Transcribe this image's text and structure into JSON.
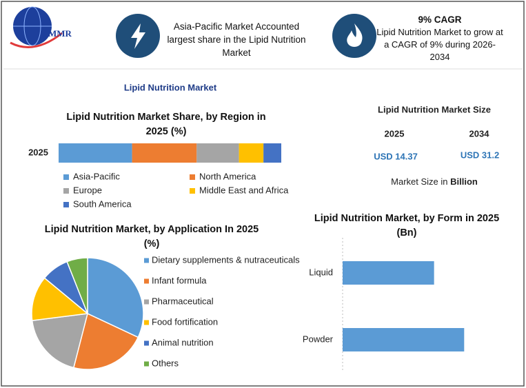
{
  "header": {
    "logo": "MMR",
    "info1": "Asia-Pacific Market Accounted largest share in the Lipid Nutrition Market",
    "info2_title": "9% CAGR",
    "info2_text": "Lipid Nutrition Market to grow at a CAGR of 9% during 2026-2034"
  },
  "title": "Lipid Nutrition Market",
  "market_size": {
    "title": "Lipid Nutrition Market Size",
    "years": [
      "2025",
      "2034"
    ],
    "values": [
      "USD 14.37",
      "USD 31.2"
    ],
    "note_prefix": "Market Size in",
    "note_unit": "Billion"
  },
  "chart_data": [
    {
      "type": "stacked-bar",
      "title": "Lipid Nutrition Market Share, by Region in 2025 (%)",
      "categories": [
        "2025"
      ],
      "xlim": [
        0,
        100
      ],
      "series": [
        {
          "name": "Asia-Pacific",
          "color": "#5b9bd5",
          "values": [
            33
          ]
        },
        {
          "name": "North America",
          "color": "#ed7d31",
          "values": [
            29
          ]
        },
        {
          "name": "Europe",
          "color": "#a5a5a5",
          "values": [
            19
          ]
        },
        {
          "name": "Middle East and Africa",
          "color": "#ffc000",
          "values": [
            11
          ]
        },
        {
          "name": "South America",
          "color": "#4472c4",
          "values": [
            8
          ]
        }
      ]
    },
    {
      "type": "pie",
      "title": "Lipid Nutrition Market, by Application In 2025 (%)",
      "categories": [
        "Dietary supplements & nutraceuticals",
        "Infant formula",
        "Pharmaceutical",
        "Food fortification",
        "Animal nutrition",
        "Others"
      ],
      "values": [
        32,
        22,
        19,
        13,
        8,
        6
      ],
      "colors": [
        "#5b9bd5",
        "#ed7d31",
        "#a5a5a5",
        "#ffc000",
        "#4472c4",
        "#70ad47"
      ]
    },
    {
      "type": "hbar",
      "title": "Lipid Nutrition Market, by Form in 2025 (Bn)",
      "categories": [
        "Liquid",
        "Powder"
      ],
      "values": [
        6.17,
        8.2
      ],
      "color": "#5b9bd5",
      "xlim": [
        0,
        10
      ]
    }
  ]
}
